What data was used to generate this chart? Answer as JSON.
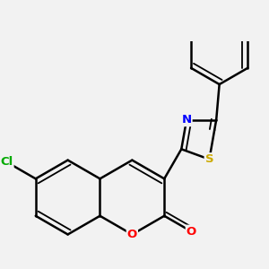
{
  "bg_color": "#f2f2f2",
  "atom_colors": {
    "C": "#000000",
    "N": "#0000ff",
    "O": "#ff0000",
    "S": "#ccaa00",
    "Cl": "#00aa00"
  },
  "bond_color": "#000000",
  "bond_width": 1.8,
  "figsize": [
    3.0,
    3.0
  ],
  "dpi": 100
}
